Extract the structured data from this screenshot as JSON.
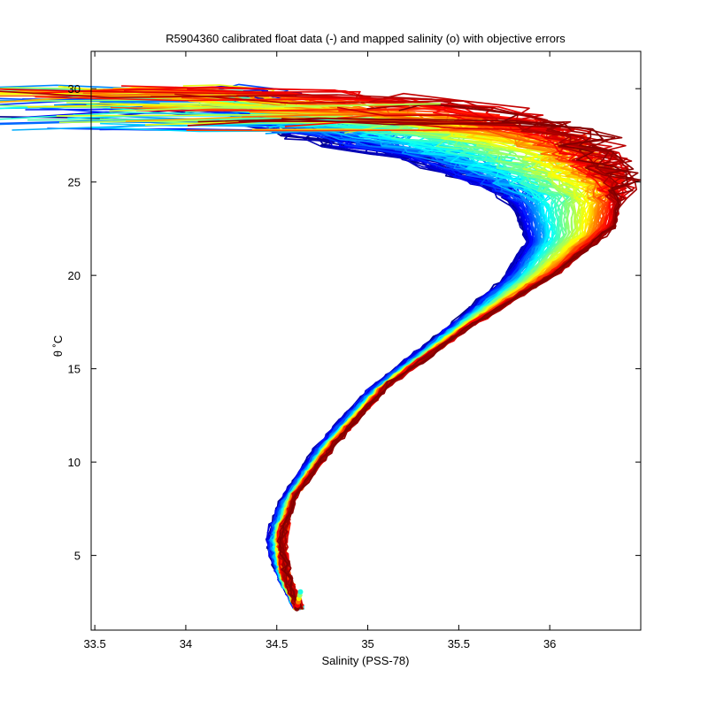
{
  "chart_data": {
    "type": "line",
    "title": "R5904360 calibrated float data (-) and mapped salinity (o) with objective errors",
    "xlabel": "Salinity (PSS-78)",
    "ylabel": "θ ˚C",
    "xlim": [
      33.48,
      36.5
    ],
    "ylim": [
      1.0,
      32.0
    ],
    "xticks": [
      33.5,
      34,
      34.5,
      35,
      35.5,
      36
    ],
    "xtick_labels": [
      "33.5",
      "34",
      "34.5",
      "35",
      "35.5",
      "36"
    ],
    "yticks": [
      5,
      10,
      15,
      20,
      25,
      30
    ],
    "ytick_labels": [
      "5",
      "10",
      "15",
      "20",
      "25",
      "30"
    ],
    "grid": false,
    "legend": "none",
    "colormap": "jet",
    "profile_count": 140,
    "representative_profiles": [
      {
        "color_index": 0.05,
        "points": [
          [
            34.62,
            2.2
          ],
          [
            34.52,
            4.0
          ],
          [
            34.46,
            5.6
          ],
          [
            34.5,
            7.5
          ],
          [
            34.7,
            10.5
          ],
          [
            35.0,
            13.8
          ],
          [
            35.4,
            16.8
          ],
          [
            35.75,
            19.8
          ],
          [
            35.88,
            21.8
          ],
          [
            35.82,
            23.5
          ],
          [
            35.7,
            24.8
          ],
          [
            35.3,
            26.2
          ],
          [
            34.8,
            27.2
          ],
          [
            34.4,
            28.2
          ]
        ]
      },
      {
        "color_index": 0.35,
        "points": [
          [
            34.62,
            2.2
          ],
          [
            34.53,
            4.0
          ],
          [
            34.5,
            5.8
          ],
          [
            34.55,
            7.8
          ],
          [
            34.75,
            10.6
          ],
          [
            35.05,
            13.8
          ],
          [
            35.45,
            16.9
          ],
          [
            35.85,
            19.9
          ],
          [
            36.0,
            22.0
          ],
          [
            35.95,
            24.2
          ],
          [
            35.6,
            26.2
          ],
          [
            35.0,
            27.8
          ],
          [
            34.3,
            28.9
          ]
        ]
      },
      {
        "color_index": 0.65,
        "points": [
          [
            34.62,
            2.2
          ],
          [
            34.54,
            4.0
          ],
          [
            34.52,
            6.0
          ],
          [
            34.58,
            8.0
          ],
          [
            34.78,
            10.8
          ],
          [
            35.08,
            14.0
          ],
          [
            35.5,
            17.0
          ],
          [
            35.95,
            20.0
          ],
          [
            36.2,
            22.2
          ],
          [
            36.25,
            24.6
          ],
          [
            36.0,
            26.8
          ],
          [
            35.3,
            28.4
          ],
          [
            34.2,
            29.4
          ]
        ]
      },
      {
        "color_index": 0.95,
        "points": [
          [
            34.62,
            2.2
          ],
          [
            34.55,
            4.0
          ],
          [
            34.53,
            6.0
          ],
          [
            34.6,
            8.2
          ],
          [
            34.82,
            11.0
          ],
          [
            35.12,
            14.2
          ],
          [
            35.55,
            17.2
          ],
          [
            36.05,
            20.2
          ],
          [
            36.35,
            22.6
          ],
          [
            36.4,
            25.0
          ],
          [
            36.2,
            27.4
          ],
          [
            35.6,
            29.2
          ],
          [
            34.6,
            29.9
          ]
        ]
      }
    ]
  }
}
